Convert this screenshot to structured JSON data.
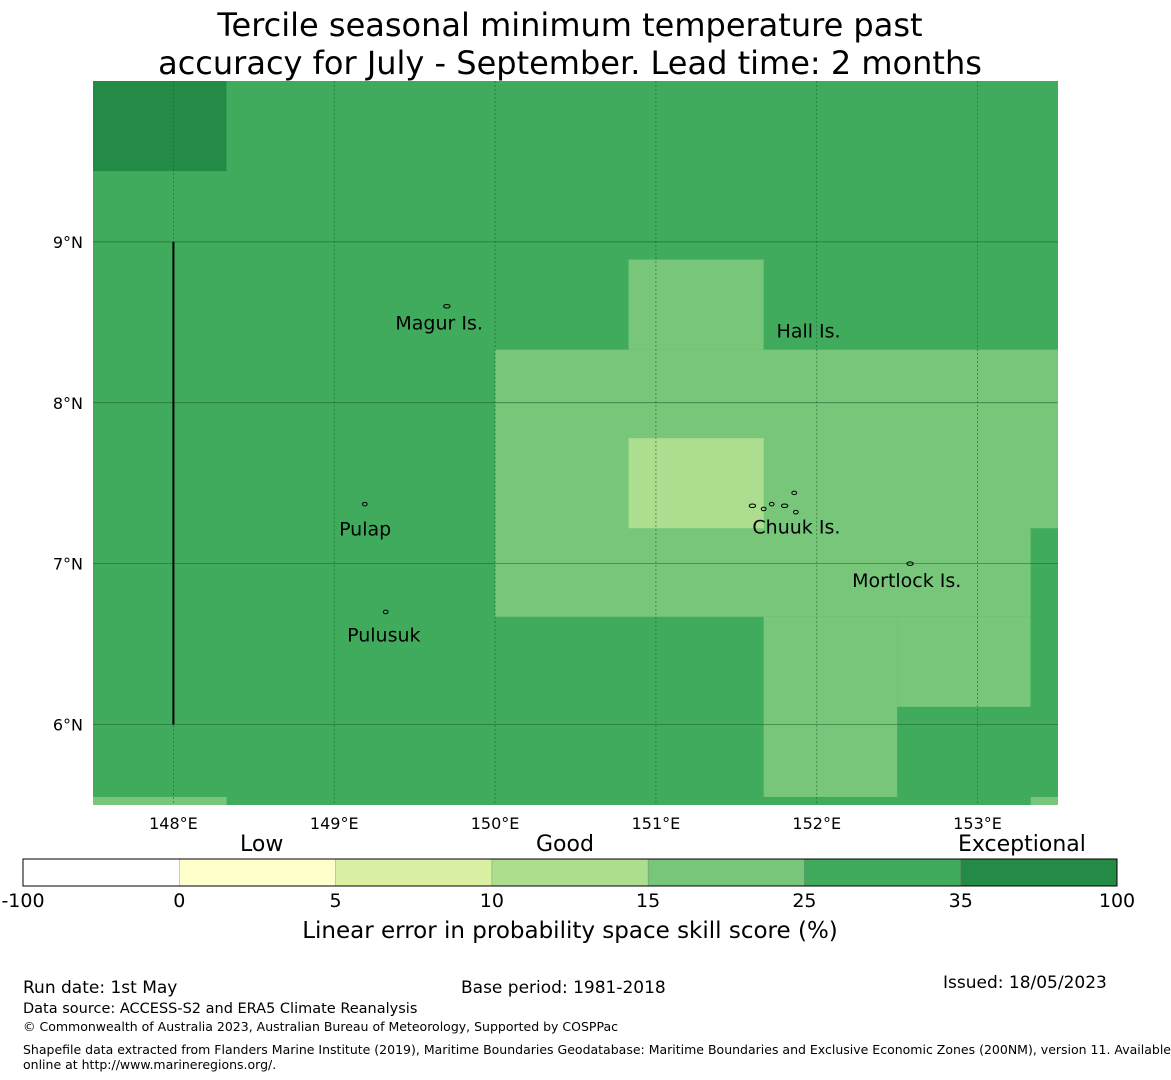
{
  "title": {
    "line1": "Tercile seasonal minimum temperature past",
    "line2": "accuracy for July - September. Lead time: 2 months"
  },
  "map": {
    "lon_range": [
      147.5,
      153.5
    ],
    "lat_range": [
      5.5,
      10.0
    ],
    "lon_ticks": [
      {
        "value": 148,
        "label": "148°E"
      },
      {
        "value": 149,
        "label": "149°E"
      },
      {
        "value": 150,
        "label": "150°E"
      },
      {
        "value": 151,
        "label": "151°E"
      },
      {
        "value": 152,
        "label": "152°E"
      },
      {
        "value": 153,
        "label": "153°E"
      }
    ],
    "lat_ticks": [
      {
        "value": 9,
        "label": "9°N"
      },
      {
        "value": 8,
        "label": "8°N"
      },
      {
        "value": 7,
        "label": "7°N"
      },
      {
        "value": 6,
        "label": "6°N"
      }
    ],
    "background_color": "#41ab5d",
    "cells": [
      {
        "lon": [
          147.5,
          148.33
        ],
        "lat": [
          9.44,
          10.0
        ],
        "color": "#238b45"
      },
      {
        "lon": [
          150.0,
          153.5
        ],
        "lat": [
          6.67,
          8.33
        ],
        "color": "#78c679"
      },
      {
        "lon": [
          150.83,
          151.67
        ],
        "lat": [
          8.33,
          8.89
        ],
        "color": "#78c679"
      },
      {
        "lon": [
          151.67,
          152.5
        ],
        "lat": [
          5.55,
          6.67
        ],
        "color": "#78c679"
      },
      {
        "lon": [
          152.5,
          153.33
        ],
        "lat": [
          6.11,
          6.67
        ],
        "color": "#78c679"
      },
      {
        "lon": [
          150.83,
          151.67
        ],
        "lat": [
          7.22,
          7.78
        ],
        "color": "#addd8e"
      },
      {
        "lon": [
          153.33,
          153.5
        ],
        "lat": [
          5.5,
          7.22
        ],
        "color": "#41ab5d"
      },
      {
        "lon": [
          147.5,
          148.33
        ],
        "lat": [
          5.5,
          5.55
        ],
        "color": "#78c679"
      },
      {
        "lon": [
          153.33,
          153.5
        ],
        "lat": [
          5.5,
          5.55
        ],
        "color": "#78c679"
      }
    ],
    "boundary_line": {
      "lon": 148.0,
      "lat": [
        6.0,
        9.0
      ]
    },
    "places": [
      {
        "name": "Magur Is.",
        "lon": 149.38,
        "lat": 8.5
      },
      {
        "name": "Hall Is.",
        "lon": 151.75,
        "lat": 8.45
      },
      {
        "name": "Pulap",
        "lon": 149.03,
        "lat": 7.22
      },
      {
        "name": "Chuuk Is.",
        "lon": 151.6,
        "lat": 7.23
      },
      {
        "name": "Mortlock Is.",
        "lon": 152.22,
        "lat": 6.9
      },
      {
        "name": "Pulusuk",
        "lon": 149.08,
        "lat": 6.56
      }
    ],
    "islands": [
      {
        "lon": 149.7,
        "lat": 8.6
      },
      {
        "lon": 149.19,
        "lat": 7.37
      },
      {
        "lon": 149.32,
        "lat": 6.7
      },
      {
        "lon": 151.6,
        "lat": 7.36
      },
      {
        "lon": 151.67,
        "lat": 7.34
      },
      {
        "lon": 151.72,
        "lat": 7.37
      },
      {
        "lon": 151.8,
        "lat": 7.36
      },
      {
        "lon": 151.86,
        "lat": 7.44
      },
      {
        "lon": 151.87,
        "lat": 7.32
      },
      {
        "lon": 152.58,
        "lat": 7.0
      }
    ]
  },
  "colorbar": {
    "categories": [
      {
        "label": "Low"
      },
      {
        "label": "Good"
      },
      {
        "label": "Exceptional"
      }
    ],
    "bins": [
      {
        "from": -100,
        "to": 0,
        "color": "#ffffff"
      },
      {
        "from": 0,
        "to": 5,
        "color": "#ffffcc"
      },
      {
        "from": 5,
        "to": 10,
        "color": "#d9f0a3"
      },
      {
        "from": 10,
        "to": 15,
        "color": "#addd8e"
      },
      {
        "from": 15,
        "to": 25,
        "color": "#78c679"
      },
      {
        "from": 25,
        "to": 35,
        "color": "#41ab5d"
      },
      {
        "from": 35,
        "to": 100,
        "color": "#238b45"
      }
    ],
    "tick_labels": [
      "-100",
      "0",
      "5",
      "10",
      "15",
      "25",
      "35",
      "100"
    ],
    "label": "Linear error in probability space skill score (%)"
  },
  "footer": {
    "run_date": "Run date: 1st May",
    "base_period": "Base period: 1981-2018",
    "issued": "Issued: 18/05/2023",
    "data_source": "Data source: ACCESS-S2 and ERA5 Climate Reanalysis",
    "copyright": "© Commonwealth of Australia 2023, Australian Bureau of Meteorology, Supported by COSPPac",
    "shapefile_line1": "Shapefile data extracted from Flanders Marine Institute (2019), Maritime Boundaries Geodatabase: Maritime Boundaries and Exclusive Economic Zones (200NM), version 11. Available",
    "shapefile_line2": "online at http://www.marineregions.org/."
  }
}
